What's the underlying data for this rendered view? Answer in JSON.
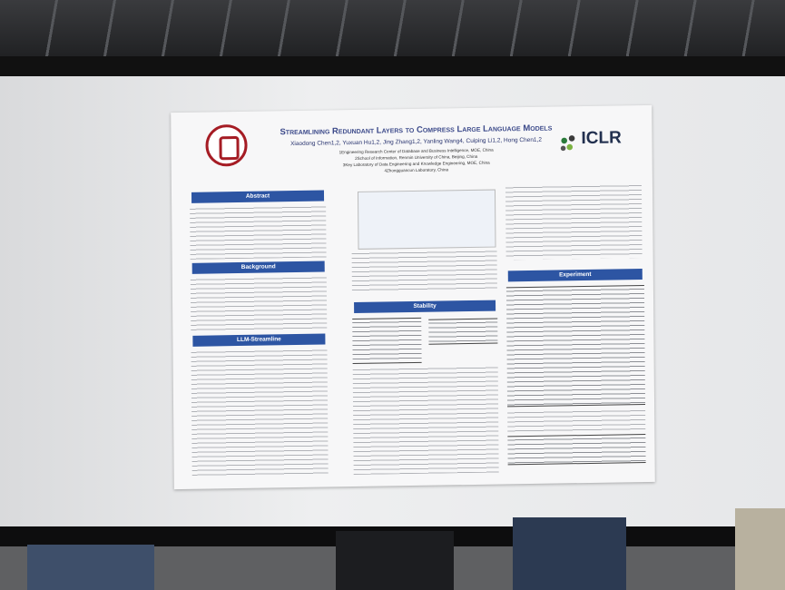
{
  "poster": {
    "title": "Streamlining Redundant Layers to Compress Large Language Models",
    "authors": "Xiaodong Chen1,2, Yuxuan Hu1,2, Jing Zhang1,2, Yanling Wang4, Cuiping Li1,2, Hong Chen1,2",
    "affiliations": [
      "1Engineering Research Center of Database and Business Intelligence, MOE, China",
      "2School of Information, Renmin University of China, Beijing, China",
      "3Key Laboratory of Data Engineering and Knowledge Engineering, MOE, China",
      "4Zhongguancun Laboratory, China"
    ],
    "conference": "ICLR",
    "sections": [
      "Abstract",
      "Background",
      "LLM-Streamline",
      "Stability",
      "Experiment"
    ]
  }
}
